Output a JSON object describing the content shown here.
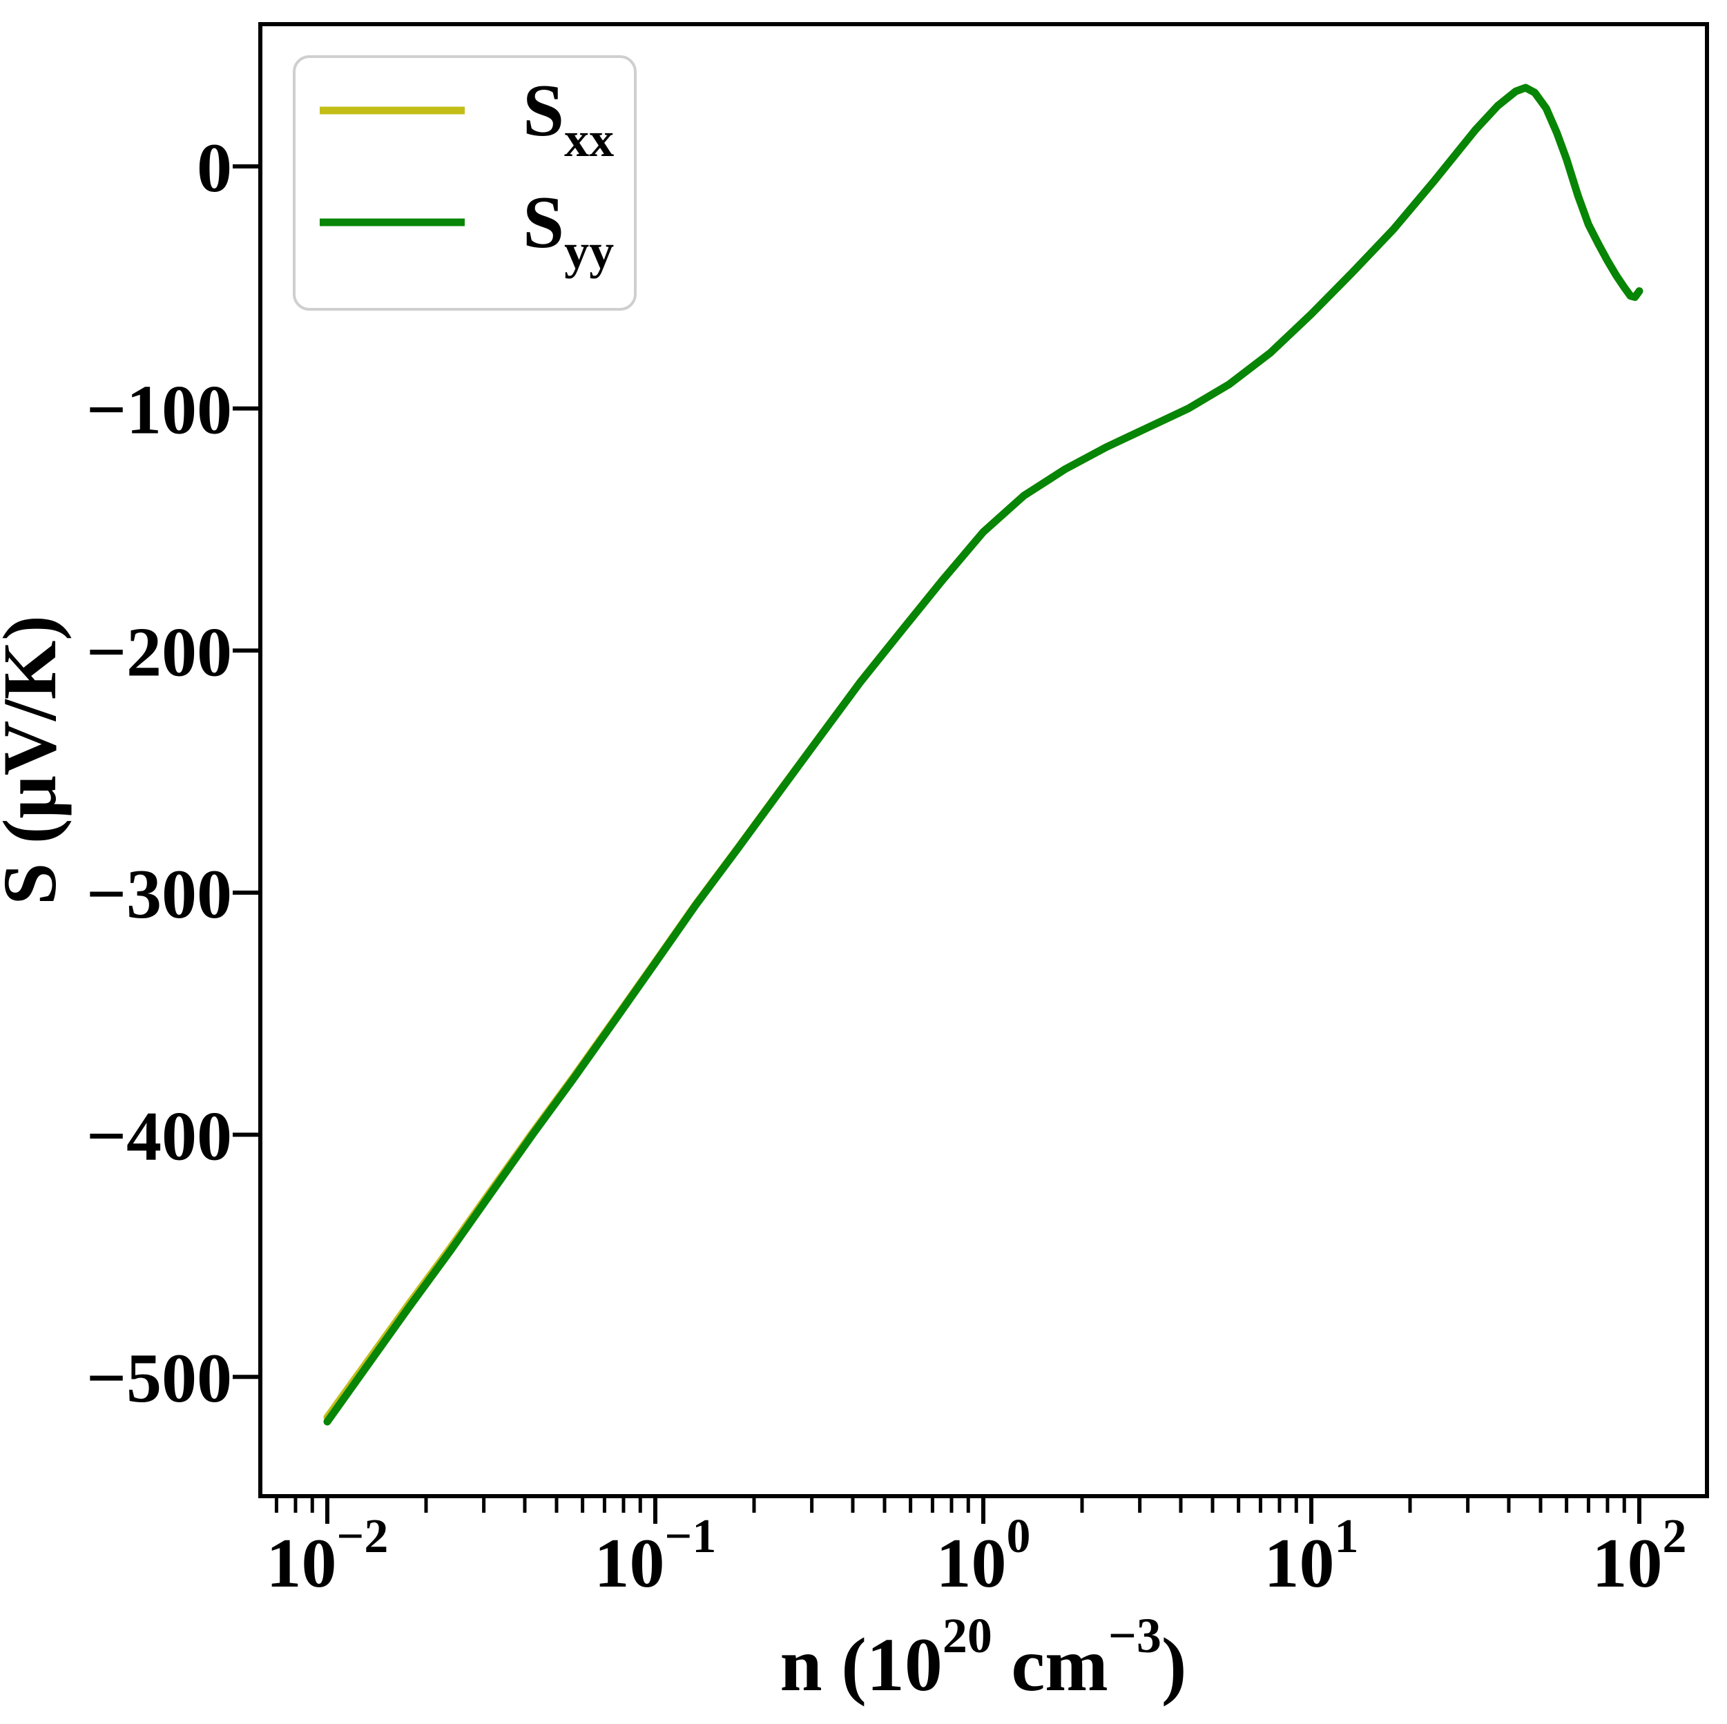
{
  "figure": {
    "ylabel": "S (μV/K)",
    "xlabel_plain": "n (10²⁰ cm⁻³)",
    "xlabel_parts": {
      "base1": "n (10",
      "sup1": "20",
      "base2": " cm",
      "sup2": "−3",
      "base3": ")"
    },
    "legend": {
      "entries": [
        {
          "base": "S",
          "sub": "xx",
          "color": "#c2be17"
        },
        {
          "base": "S",
          "sub": "yy",
          "color": "#078507"
        }
      ]
    }
  },
  "chart_data": {
    "type": "line",
    "title": "",
    "xlabel": "n (10^20 cm^-3)",
    "ylabel": "S (μV/K)",
    "x_scale": "log",
    "grid": false,
    "legend_position": "upper left",
    "x_tick_exponents": [
      -2,
      -1,
      0,
      1,
      2
    ],
    "y_ticks": [
      0,
      -100,
      -200,
      -300,
      -400,
      -500
    ],
    "xlim_log10": [
      -2.205,
      2.206
    ],
    "ylim": [
      -549,
      59
    ],
    "x": [
      0.01,
      0.0133,
      0.0178,
      0.0237,
      0.0316,
      0.0422,
      0.0562,
      0.075,
      0.1,
      0.133,
      0.178,
      0.237,
      0.316,
      0.422,
      0.562,
      0.75,
      1.0,
      1.33,
      1.78,
      2.37,
      3.16,
      4.22,
      5.62,
      7.5,
      10,
      13.3,
      17.8,
      23.7,
      31.6,
      37,
      42,
      45,
      48,
      52,
      56,
      60,
      65,
      70,
      75,
      80,
      85,
      90,
      94,
      97,
      100
    ],
    "series": [
      {
        "name": "S_xx",
        "color": "#c2be17",
        "y": [
          -516.7,
          -493.4,
          -469.6,
          -446.8,
          -423.0,
          -399.2,
          -376.3,
          -352.5,
          -328.6,
          -304.7,
          -281.8,
          -258.8,
          -235.9,
          -212.9,
          -191.9,
          -170.9,
          -151,
          -136,
          -125,
          -116,
          -108,
          -100,
          -90,
          -77,
          -61,
          -44,
          -26,
          -6,
          15,
          25,
          31,
          32.5,
          30.5,
          24,
          14,
          3,
          -12,
          -24,
          -32,
          -39,
          -45,
          -50,
          -53.5,
          -54,
          -51.5
        ]
      },
      {
        "name": "S_yy",
        "color": "#078507",
        "y": [
          -518.5,
          -495,
          -471,
          -448,
          -424,
          -400,
          -377,
          -353,
          -329,
          -305,
          -282,
          -259,
          -236,
          -213,
          -192,
          -171,
          -151,
          -136,
          -125,
          -116,
          -108,
          -100,
          -90,
          -77,
          -61,
          -44,
          -26,
          -6,
          15,
          25,
          31,
          32.5,
          30.5,
          24,
          14,
          3,
          -12,
          -24,
          -32,
          -39,
          -45,
          -50,
          -53.5,
          -54,
          -51.5
        ]
      }
    ]
  }
}
